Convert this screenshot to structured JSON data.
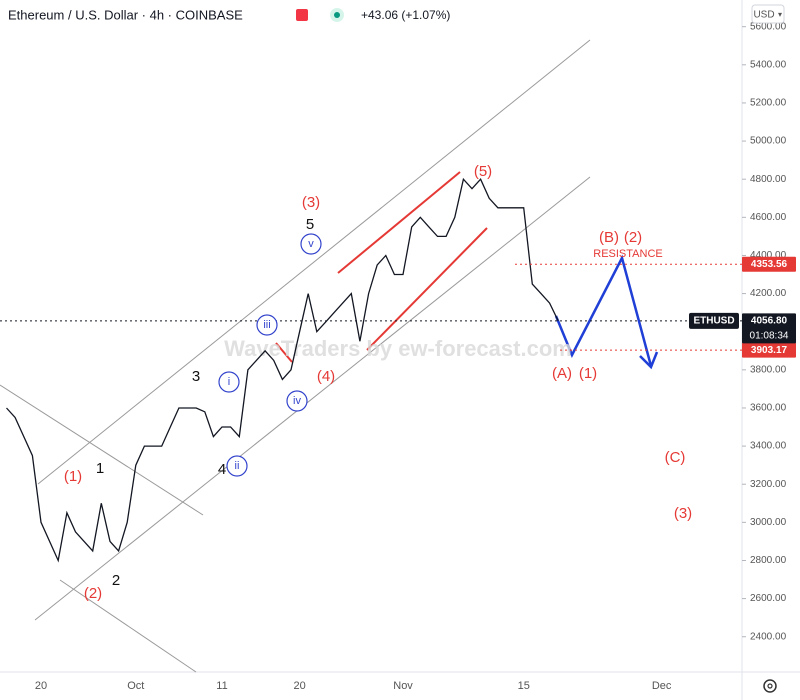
{
  "chart_data": {
    "type": "line",
    "title": "Ethereum / U.S. Dollar · 4h · COINBASE",
    "change": "+43.06 (+1.07%)",
    "currency": "USD",
    "watermark": "WaveTraders by ew-forecast.com",
    "countdown": "01:08:34",
    "categories": [
      null,
      null,
      null,
      null,
      "20",
      null,
      null,
      null,
      null,
      null,
      null,
      null,
      null,
      null,
      null,
      "Oct",
      null,
      null,
      null,
      null,
      null,
      null,
      null,
      null,
      null,
      "11",
      null,
      null,
      null,
      null,
      null,
      null,
      null,
      null,
      "20",
      null,
      null,
      null,
      null,
      null,
      null,
      null,
      null,
      null,
      null,
      null,
      "Nov",
      null,
      null,
      null,
      null,
      null,
      null,
      null,
      null,
      null,
      null,
      null,
      null,
      null,
      "15",
      null,
      null,
      null,
      null,
      null,
      null,
      null,
      null,
      null,
      null,
      null,
      null,
      null,
      null,
      null,
      "Dec",
      null,
      null,
      null,
      null
    ],
    "series": [
      {
        "name": "ETHUSD",
        "color": "#131722",
        "values": [
          3600,
          3550,
          3450,
          3350,
          3000,
          2900,
          2800,
          3050,
          2950,
          2900,
          2850,
          3100,
          2900,
          2850,
          3000,
          3300,
          3400,
          3400,
          3400,
          3500,
          3600,
          3600,
          3600,
          3580,
          3450,
          3500,
          3500,
          3450,
          3800,
          3850,
          3900,
          3850,
          3750,
          3800,
          4000,
          4200,
          4000,
          4050,
          4100,
          4150,
          4200,
          3950,
          4200,
          4350,
          4400,
          4300,
          4300,
          4550,
          4600,
          4550,
          4500,
          4500,
          4600,
          4800,
          4750,
          4800,
          4700,
          4650,
          4650,
          4650,
          4650,
          4250,
          4200,
          4150,
          4056.8,
          null,
          null,
          null,
          null,
          null,
          null,
          null,
          null,
          null,
          null,
          null,
          null,
          null,
          null,
          null,
          null
        ]
      }
    ],
    "ylim": [
      2215,
      5740
    ],
    "yticks": [
      {
        "value": 2400,
        "label": "2400.00"
      },
      {
        "value": 2600,
        "label": "2600.00"
      },
      {
        "value": 2800,
        "label": "2800.00"
      },
      {
        "value": 3000,
        "label": "3000.00"
      },
      {
        "value": 3200,
        "label": "3200.00"
      },
      {
        "value": 3400,
        "label": "3400.00"
      },
      {
        "value": 3600,
        "label": "3600.00"
      },
      {
        "value": 3800,
        "label": "3800.00"
      },
      {
        "value": 4000,
        "label": "4000.00"
      },
      {
        "value": 4200,
        "label": "4200.00"
      },
      {
        "value": 4400,
        "label": "4400.00"
      },
      {
        "value": 4600,
        "label": "4600.00"
      },
      {
        "value": 4800,
        "label": "4800.00"
      },
      {
        "value": 5000,
        "label": "5000.00"
      },
      {
        "value": 5200,
        "label": "5200.00"
      },
      {
        "value": 5400,
        "label": "5400.00"
      },
      {
        "value": 5600,
        "label": "5600.00"
      }
    ],
    "grid": false,
    "price_lines": [
      {
        "value": 4353.56,
        "label": "4353.56",
        "color": "#e53935"
      },
      {
        "value": 3903.17,
        "label": "3903.17",
        "color": "#e53935"
      },
      {
        "value": 4056.8,
        "label": "4056.80",
        "color": "#131722"
      }
    ],
    "annotations": [
      {
        "text": "(1)",
        "color": "#e53935"
      },
      {
        "text": "(2)",
        "color": "#e53935"
      },
      {
        "text": "1",
        "color": "#111111"
      },
      {
        "text": "2",
        "color": "#111111"
      },
      {
        "text": "3",
        "color": "#111111"
      },
      {
        "text": "4",
        "color": "#111111"
      },
      {
        "text": "5",
        "color": "#111111"
      },
      {
        "text": "(3)",
        "color": "#e53935"
      },
      {
        "text": "i",
        "color": "#3344cc"
      },
      {
        "text": "ii",
        "color": "#3344cc"
      },
      {
        "text": "iii",
        "color": "#3344cc"
      },
      {
        "text": "iv",
        "color": "#3344cc"
      },
      {
        "text": "v",
        "color": "#3344cc"
      },
      {
        "text": "(4)",
        "color": "#e53935"
      },
      {
        "text": "(5)",
        "color": "#e53935"
      },
      {
        "text": "(A)",
        "color": "#e53935"
      },
      {
        "text": "(1)",
        "color": "#e53935"
      },
      {
        "text": "(B)",
        "color": "#e53935"
      },
      {
        "text": "(2)",
        "color": "#e53935"
      },
      {
        "text": "(C)",
        "color": "#e53935"
      },
      {
        "text": "(3)",
        "color": "#e53935"
      },
      {
        "text": "RESISTANCE",
        "color": "#e53935"
      }
    ]
  }
}
